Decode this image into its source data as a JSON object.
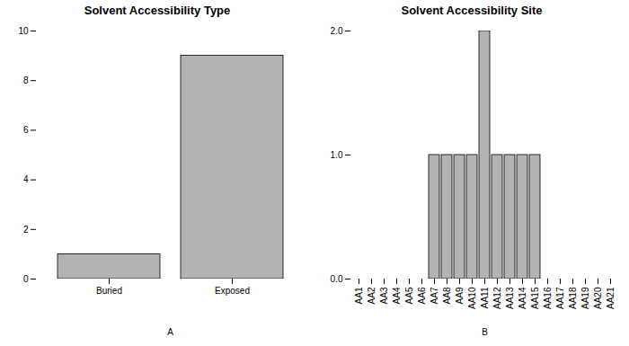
{
  "chart_data": [
    {
      "type": "bar",
      "title": "Solvent Accessibility Type",
      "categories": [
        "Buried",
        "Exposed"
      ],
      "values": [
        1,
        9
      ],
      "color": "#b3b3b3",
      "ylim": [
        0,
        10
      ],
      "yticks": [
        0,
        2,
        4,
        6,
        8,
        10
      ],
      "x_label": "A",
      "grid": false
    },
    {
      "type": "bar",
      "title": "Solvent Accessibility Site",
      "categories": [
        "AA1",
        "AA2",
        "AA3",
        "AA4",
        "AA5",
        "AA6",
        "AA7",
        "AA8",
        "AA9",
        "AA10",
        "AA11",
        "AA12",
        "AA13",
        "AA14",
        "AA15",
        "AA16",
        "AA17",
        "AA18",
        "AA19",
        "AA20",
        "AA21"
      ],
      "values": [
        0,
        0,
        0,
        0,
        0,
        0,
        1,
        1,
        1,
        1,
        2,
        1,
        1,
        1,
        1,
        0,
        0,
        0,
        0,
        0,
        0
      ],
      "color": "#b3b3b3",
      "ylim": [
        0,
        2
      ],
      "yticks": [
        0,
        1,
        2
      ],
      "x_label": "B",
      "grid": false
    }
  ]
}
